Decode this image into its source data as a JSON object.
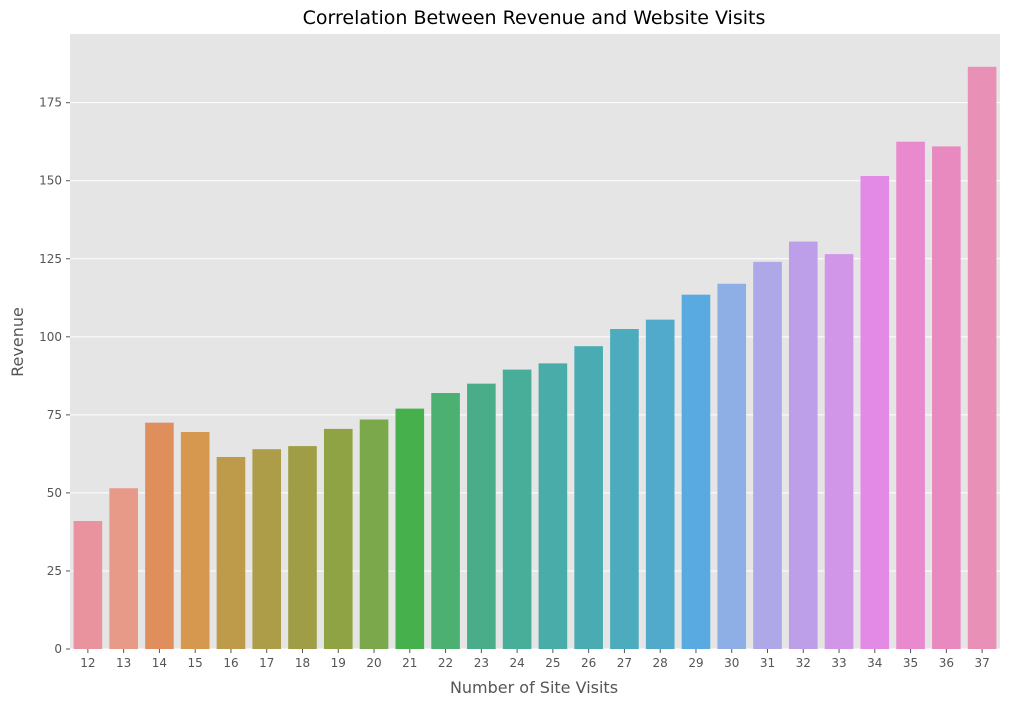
{
  "chart_data": {
    "type": "bar",
    "title": "Correlation Between Revenue and Website Visits",
    "xlabel": "Number of Site Visits",
    "ylabel": "Revenue",
    "categories": [
      "12",
      "13",
      "14",
      "15",
      "16",
      "17",
      "18",
      "19",
      "20",
      "21",
      "22",
      "23",
      "24",
      "25",
      "26",
      "27",
      "28",
      "29",
      "30",
      "31",
      "32",
      "33",
      "34",
      "35",
      "36",
      "37"
    ],
    "values": [
      41,
      51.5,
      72.5,
      69.5,
      61.5,
      64,
      65,
      70.5,
      73.5,
      77,
      82,
      85,
      89.5,
      91.5,
      97,
      102.5,
      105.5,
      113.5,
      117,
      124,
      130.5,
      126.5,
      151.5,
      162.5,
      161,
      186.5
    ],
    "colors": [
      "#e8939d",
      "#e89a88",
      "#e08e5c",
      "#d6984f",
      "#be9a4b",
      "#ad9c48",
      "#9f9e46",
      "#8fa345",
      "#7ba84a",
      "#45b04c",
      "#4db073",
      "#4aad8a",
      "#48ae99",
      "#4aaca8",
      "#4babb3",
      "#4dabbe",
      "#51aacb",
      "#58aae0",
      "#8eaee6",
      "#aea8e8",
      "#bd9ee9",
      "#d296e8",
      "#e389e6",
      "#e88acd",
      "#e88ac0",
      "#e890b6"
    ],
    "ylim": [
      0,
      197
    ],
    "yticks": [
      0,
      25,
      50,
      75,
      100,
      125,
      150,
      175
    ],
    "grid": true,
    "background": "#e5e5e5",
    "grid_color": "#ffffff"
  }
}
